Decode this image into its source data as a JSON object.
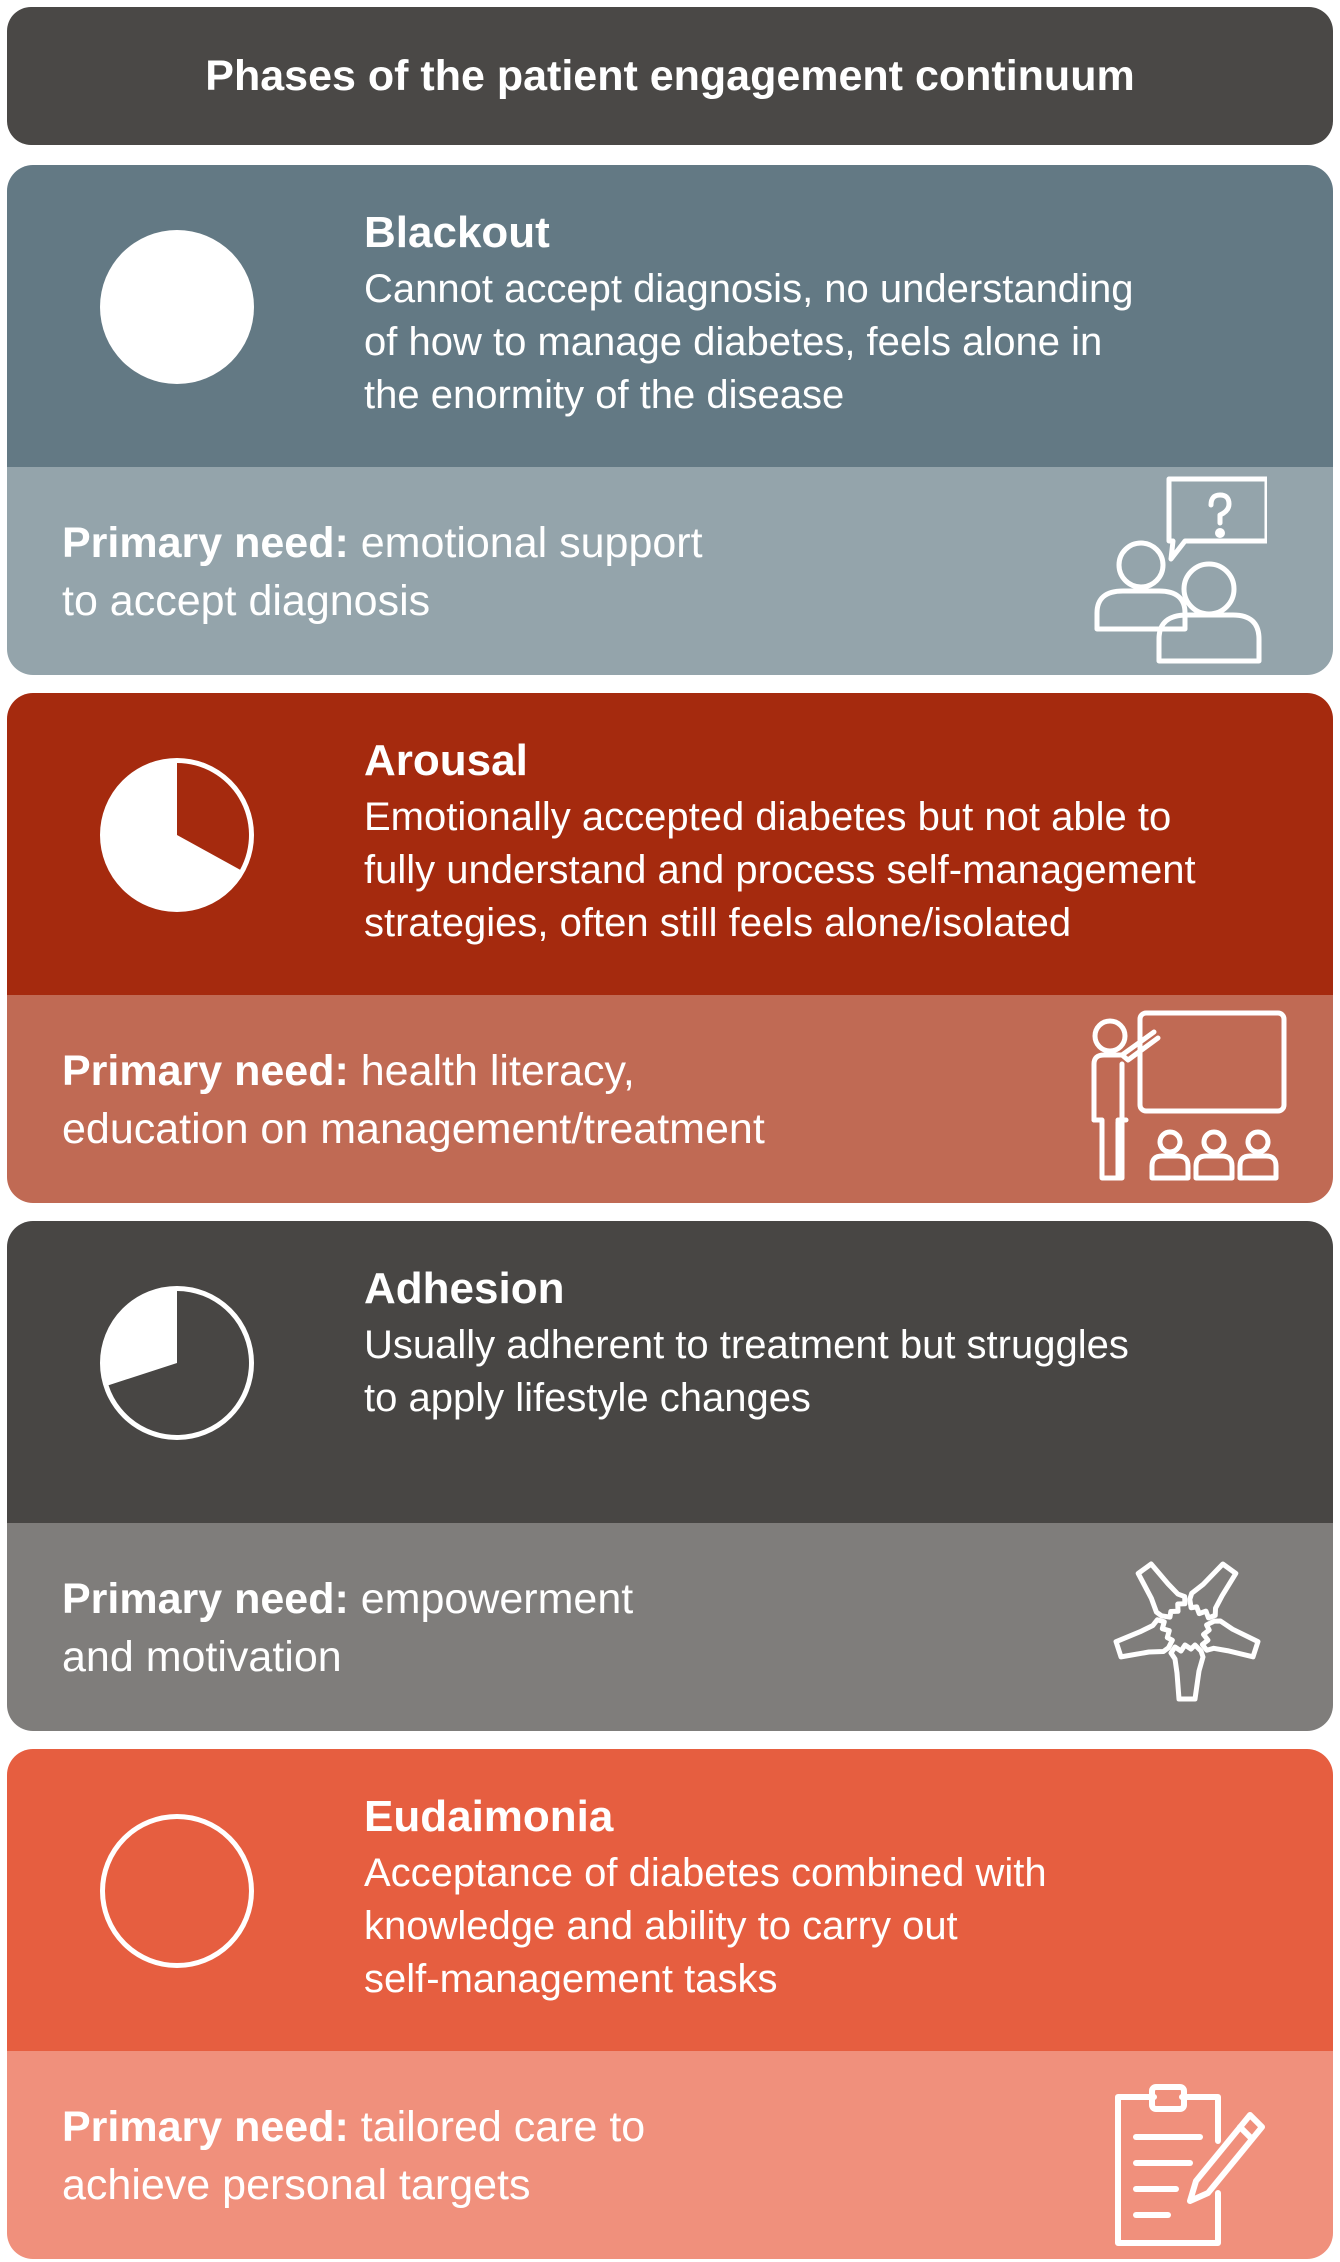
{
  "title": "Phases of the patient engagement continuum",
  "phases": [
    {
      "name": "Blackout",
      "description_lines": [
        "Cannot accept diagnosis, no understanding",
        "of how to manage diabetes, feels alone in",
        "the enormity of the disease"
      ],
      "fill_fraction": 1.0,
      "need_label": "Primary need:",
      "need_lines": [
        " emotional support",
        "to accept diagnosis"
      ],
      "need_icon": "counseling-speech-question-icon",
      "top_color": "#637984",
      "bottom_color": "#94a4ab"
    },
    {
      "name": "Arousal",
      "description_lines": [
        "Emotionally accepted diabetes but not able to",
        "fully understand and process self-management",
        "strategies, often still feels alone/isolated"
      ],
      "fill_fraction": 0.67,
      "need_label": "Primary need:",
      "need_lines": [
        " health literacy,",
        "education on management/treatment"
      ],
      "need_icon": "teacher-presentation-icon",
      "top_color": "#a52a0e",
      "bottom_color": "#c06a54"
    },
    {
      "name": "Adhesion",
      "description_lines": [
        "Usually adherent to treatment but struggles",
        "to apply lifestyle changes"
      ],
      "fill_fraction": 0.3,
      "need_label": "Primary need:",
      "need_lines": [
        " empowerment",
        "and motivation"
      ],
      "need_icon": "joined-hands-icon",
      "top_color": "#484644",
      "bottom_color": "#7f7d7b"
    },
    {
      "name": "Eudaimonia",
      "description_lines": [
        "Acceptance of diabetes combined with",
        "knowledge and ability to carry out",
        "self-management tasks"
      ],
      "fill_fraction": 0.0,
      "need_label": "Primary need:",
      "need_lines": [
        " tailored care to",
        "achieve personal targets"
      ],
      "need_icon": "clipboard-pencil-icon",
      "top_color": "#e65e40",
      "bottom_color": "#f0907c"
    }
  ]
}
